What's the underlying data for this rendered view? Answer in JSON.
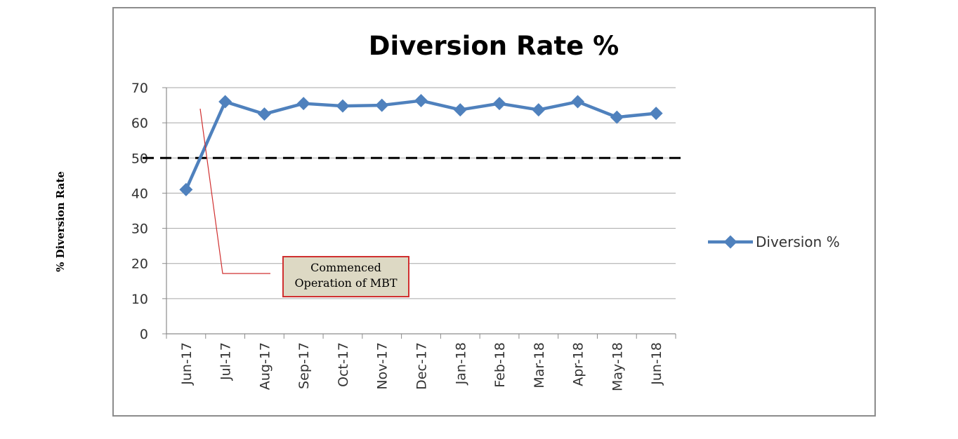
{
  "page": {
    "y_axis_side_label": "% Diversion Rate"
  },
  "chart_data": {
    "type": "line",
    "title": "Diversion Rate %",
    "categories": [
      "Jun-17",
      "Jul-17",
      "Aug-17",
      "Sep-17",
      "Oct-17",
      "Nov-17",
      "Dec-17",
      "Jan-18",
      "Feb-18",
      "Mar-18",
      "Apr-18",
      "May-18",
      "Jun-18"
    ],
    "series": [
      {
        "name": "Diversion %",
        "values": [
          41,
          66,
          62.5,
          65.5,
          64.8,
          65,
          66.3,
          63.7,
          65.5,
          63.7,
          66,
          61.6,
          62.7
        ],
        "color": "#4f81bd"
      }
    ],
    "ylim": [
      0,
      70
    ],
    "yticks": [
      0,
      10,
      20,
      30,
      40,
      50,
      60,
      70
    ],
    "grid": true,
    "reference_line": {
      "y": 50,
      "style": "dashed",
      "color": "#000000"
    },
    "legend": {
      "placement": "right"
    },
    "annotation": {
      "line1": "Commenced",
      "line2": "Operation of MBT",
      "border_color": "#d03030",
      "fill_color": "#ddd9c4"
    }
  }
}
